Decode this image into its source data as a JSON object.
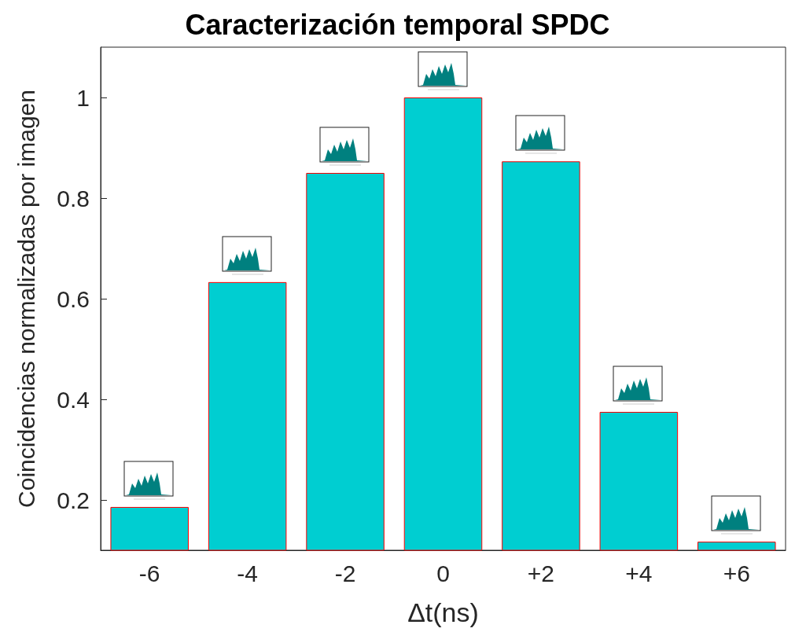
{
  "chart_data": {
    "type": "bar",
    "title": "Caracterización temporal SPDC",
    "xlabel": "Δt(ns)",
    "ylabel": "Coincidencias normalizadas por imagen",
    "categories": [
      "-6",
      "-4",
      "-2",
      "0",
      "+2",
      "+4",
      "+6"
    ],
    "values": [
      0.186,
      0.633,
      0.85,
      1.0,
      0.873,
      0.375,
      0.117
    ],
    "color": "#00ced1",
    "ylim": [
      0.1,
      1.1
    ],
    "yticks": [
      0.2,
      0.4,
      0.6,
      0.8,
      1
    ],
    "grid": false
  }
}
